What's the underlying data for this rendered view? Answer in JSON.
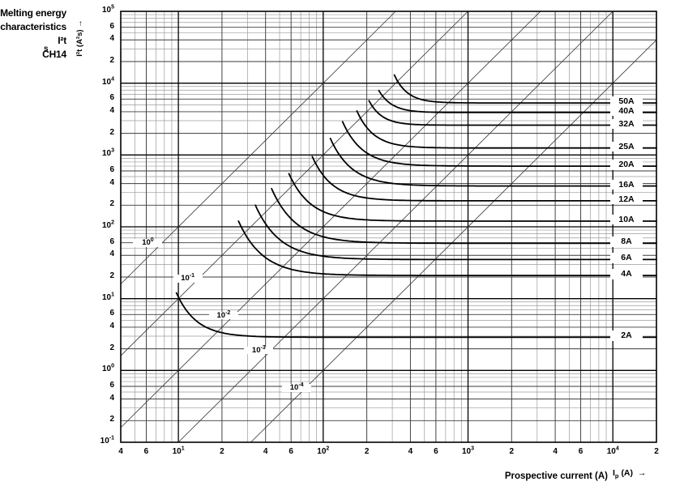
{
  "title": {
    "line1": "Melting energy",
    "line2": "characteristics I²t",
    "line3": "CH14"
  },
  "icons": {
    "right_arrow": "→"
  },
  "axes": {
    "x": {
      "label": "Prospective current (A)",
      "sym_base": "I",
      "sym_sub": "p",
      "sym_unit": "(A)",
      "min": 4,
      "max": 20000,
      "ticks": [
        {
          "v": 4,
          "l": "4"
        },
        {
          "v": 6,
          "l": "6"
        },
        {
          "v": 10,
          "l": "10^1"
        },
        {
          "v": 20,
          "l": "2"
        },
        {
          "v": 40,
          "l": "4"
        },
        {
          "v": 60,
          "l": "6"
        },
        {
          "v": 100,
          "l": "10^2"
        },
        {
          "v": 200,
          "l": "2"
        },
        {
          "v": 400,
          "l": "4"
        },
        {
          "v": 600,
          "l": "6"
        },
        {
          "v": 1000,
          "l": "10^3"
        },
        {
          "v": 2000,
          "l": "2"
        },
        {
          "v": 4000,
          "l": "4"
        },
        {
          "v": 6000,
          "l": "6"
        },
        {
          "v": 10000,
          "l": "10^4"
        },
        {
          "v": 20000,
          "l": "2"
        }
      ]
    },
    "y": {
      "label": "I²t (A²s)",
      "unit": "s",
      "min": 0.1,
      "max": 100000,
      "ticks": [
        {
          "v": 100000,
          "l": "10^5"
        },
        {
          "v": 60000,
          "l": "6"
        },
        {
          "v": 40000,
          "l": "4"
        },
        {
          "v": 20000,
          "l": "2"
        },
        {
          "v": 10000,
          "l": "10^4"
        },
        {
          "v": 6000,
          "l": "6"
        },
        {
          "v": 4000,
          "l": "4"
        },
        {
          "v": 2000,
          "l": "2"
        },
        {
          "v": 1000,
          "l": "10^3"
        },
        {
          "v": 600,
          "l": "6"
        },
        {
          "v": 400,
          "l": "4"
        },
        {
          "v": 200,
          "l": "2"
        },
        {
          "v": 100,
          "l": "10^2"
        },
        {
          "v": 60,
          "l": "6"
        },
        {
          "v": 40,
          "l": "4"
        },
        {
          "v": 20,
          "l": "2"
        },
        {
          "v": 10,
          "l": "10^1"
        },
        {
          "v": 6,
          "l": "6"
        },
        {
          "v": 4,
          "l": "4"
        },
        {
          "v": 2,
          "l": "2"
        },
        {
          "v": 1,
          "l": "10^0"
        },
        {
          "v": 0.6,
          "l": "6"
        },
        {
          "v": 0.4,
          "l": "4"
        },
        {
          "v": 0.2,
          "l": "2"
        },
        {
          "v": 0.1,
          "l": "10^-1"
        }
      ]
    }
  },
  "chart_data": {
    "type": "line",
    "title": "Melting energy characteristics I²t CH14",
    "xlabel": "Prospective current (A)",
    "ylabel": "I²t (A²s)",
    "xscale": "log",
    "yscale": "log",
    "xlim": [
      4,
      20000
    ],
    "ylim": [
      0.1,
      100000
    ],
    "grid": "log minor grid, emphasized 2/4/6 lines",
    "legend_position": "right-edge inline labels",
    "time_lines": [
      {
        "t_seconds": 1,
        "label": "10^0",
        "label_at": {
          "i": 6,
          "i2t": 56
        }
      },
      {
        "t_seconds": 0.1,
        "label": "10^-1",
        "label_at": {
          "i": 11.3,
          "i2t": 18
        }
      },
      {
        "t_seconds": 0.01,
        "label": "10^-2",
        "label_at": {
          "i": 20,
          "i2t": 5.5
        }
      },
      {
        "t_seconds": 0.001,
        "label": "10^-3",
        "label_at": {
          "i": 35,
          "i2t": 1.8
        }
      },
      {
        "t_seconds": 0.0001,
        "label": "10^-4",
        "label_at": {
          "i": 64,
          "i2t": 0.54
        }
      }
    ],
    "series": [
      {
        "label": "50A",
        "i2t_min": 5300,
        "start": {
          "i": 310,
          "i2t": 13000
        }
      },
      {
        "label": "40A",
        "i2t_min": 3900,
        "start": {
          "i": 242,
          "i2t": 7900
        }
      },
      {
        "label": "32A",
        "i2t_min": 2600,
        "start": {
          "i": 207,
          "i2t": 5700
        }
      },
      {
        "label": "25A",
        "i2t_min": 1250,
        "start": {
          "i": 171,
          "i2t": 4100
        }
      },
      {
        "label": "20A",
        "i2t_min": 700,
        "start": {
          "i": 136,
          "i2t": 2900
        }
      },
      {
        "label": "16A",
        "i2t_min": 370,
        "start": {
          "i": 112,
          "i2t": 1700
        }
      },
      {
        "label": "12A",
        "i2t_min": 230,
        "start": {
          "i": 84,
          "i2t": 950
        }
      },
      {
        "label": "10A",
        "i2t_min": 120,
        "start": {
          "i": 58,
          "i2t": 550
        }
      },
      {
        "label": "8A",
        "i2t_min": 59,
        "start": {
          "i": 44,
          "i2t": 340
        }
      },
      {
        "label": "6A",
        "i2t_min": 35,
        "start": {
          "i": 34,
          "i2t": 200
        }
      },
      {
        "label": "4A",
        "i2t_min": 21,
        "start": {
          "i": 26,
          "i2t": 120
        }
      },
      {
        "label": "2A",
        "i2t_min": 2.9,
        "start": {
          "i": 9.7,
          "i2t": 12
        }
      }
    ],
    "series_note": "each curve descends from its start point and flattens onto i2t_min, extending horizontally to x=20000"
  }
}
